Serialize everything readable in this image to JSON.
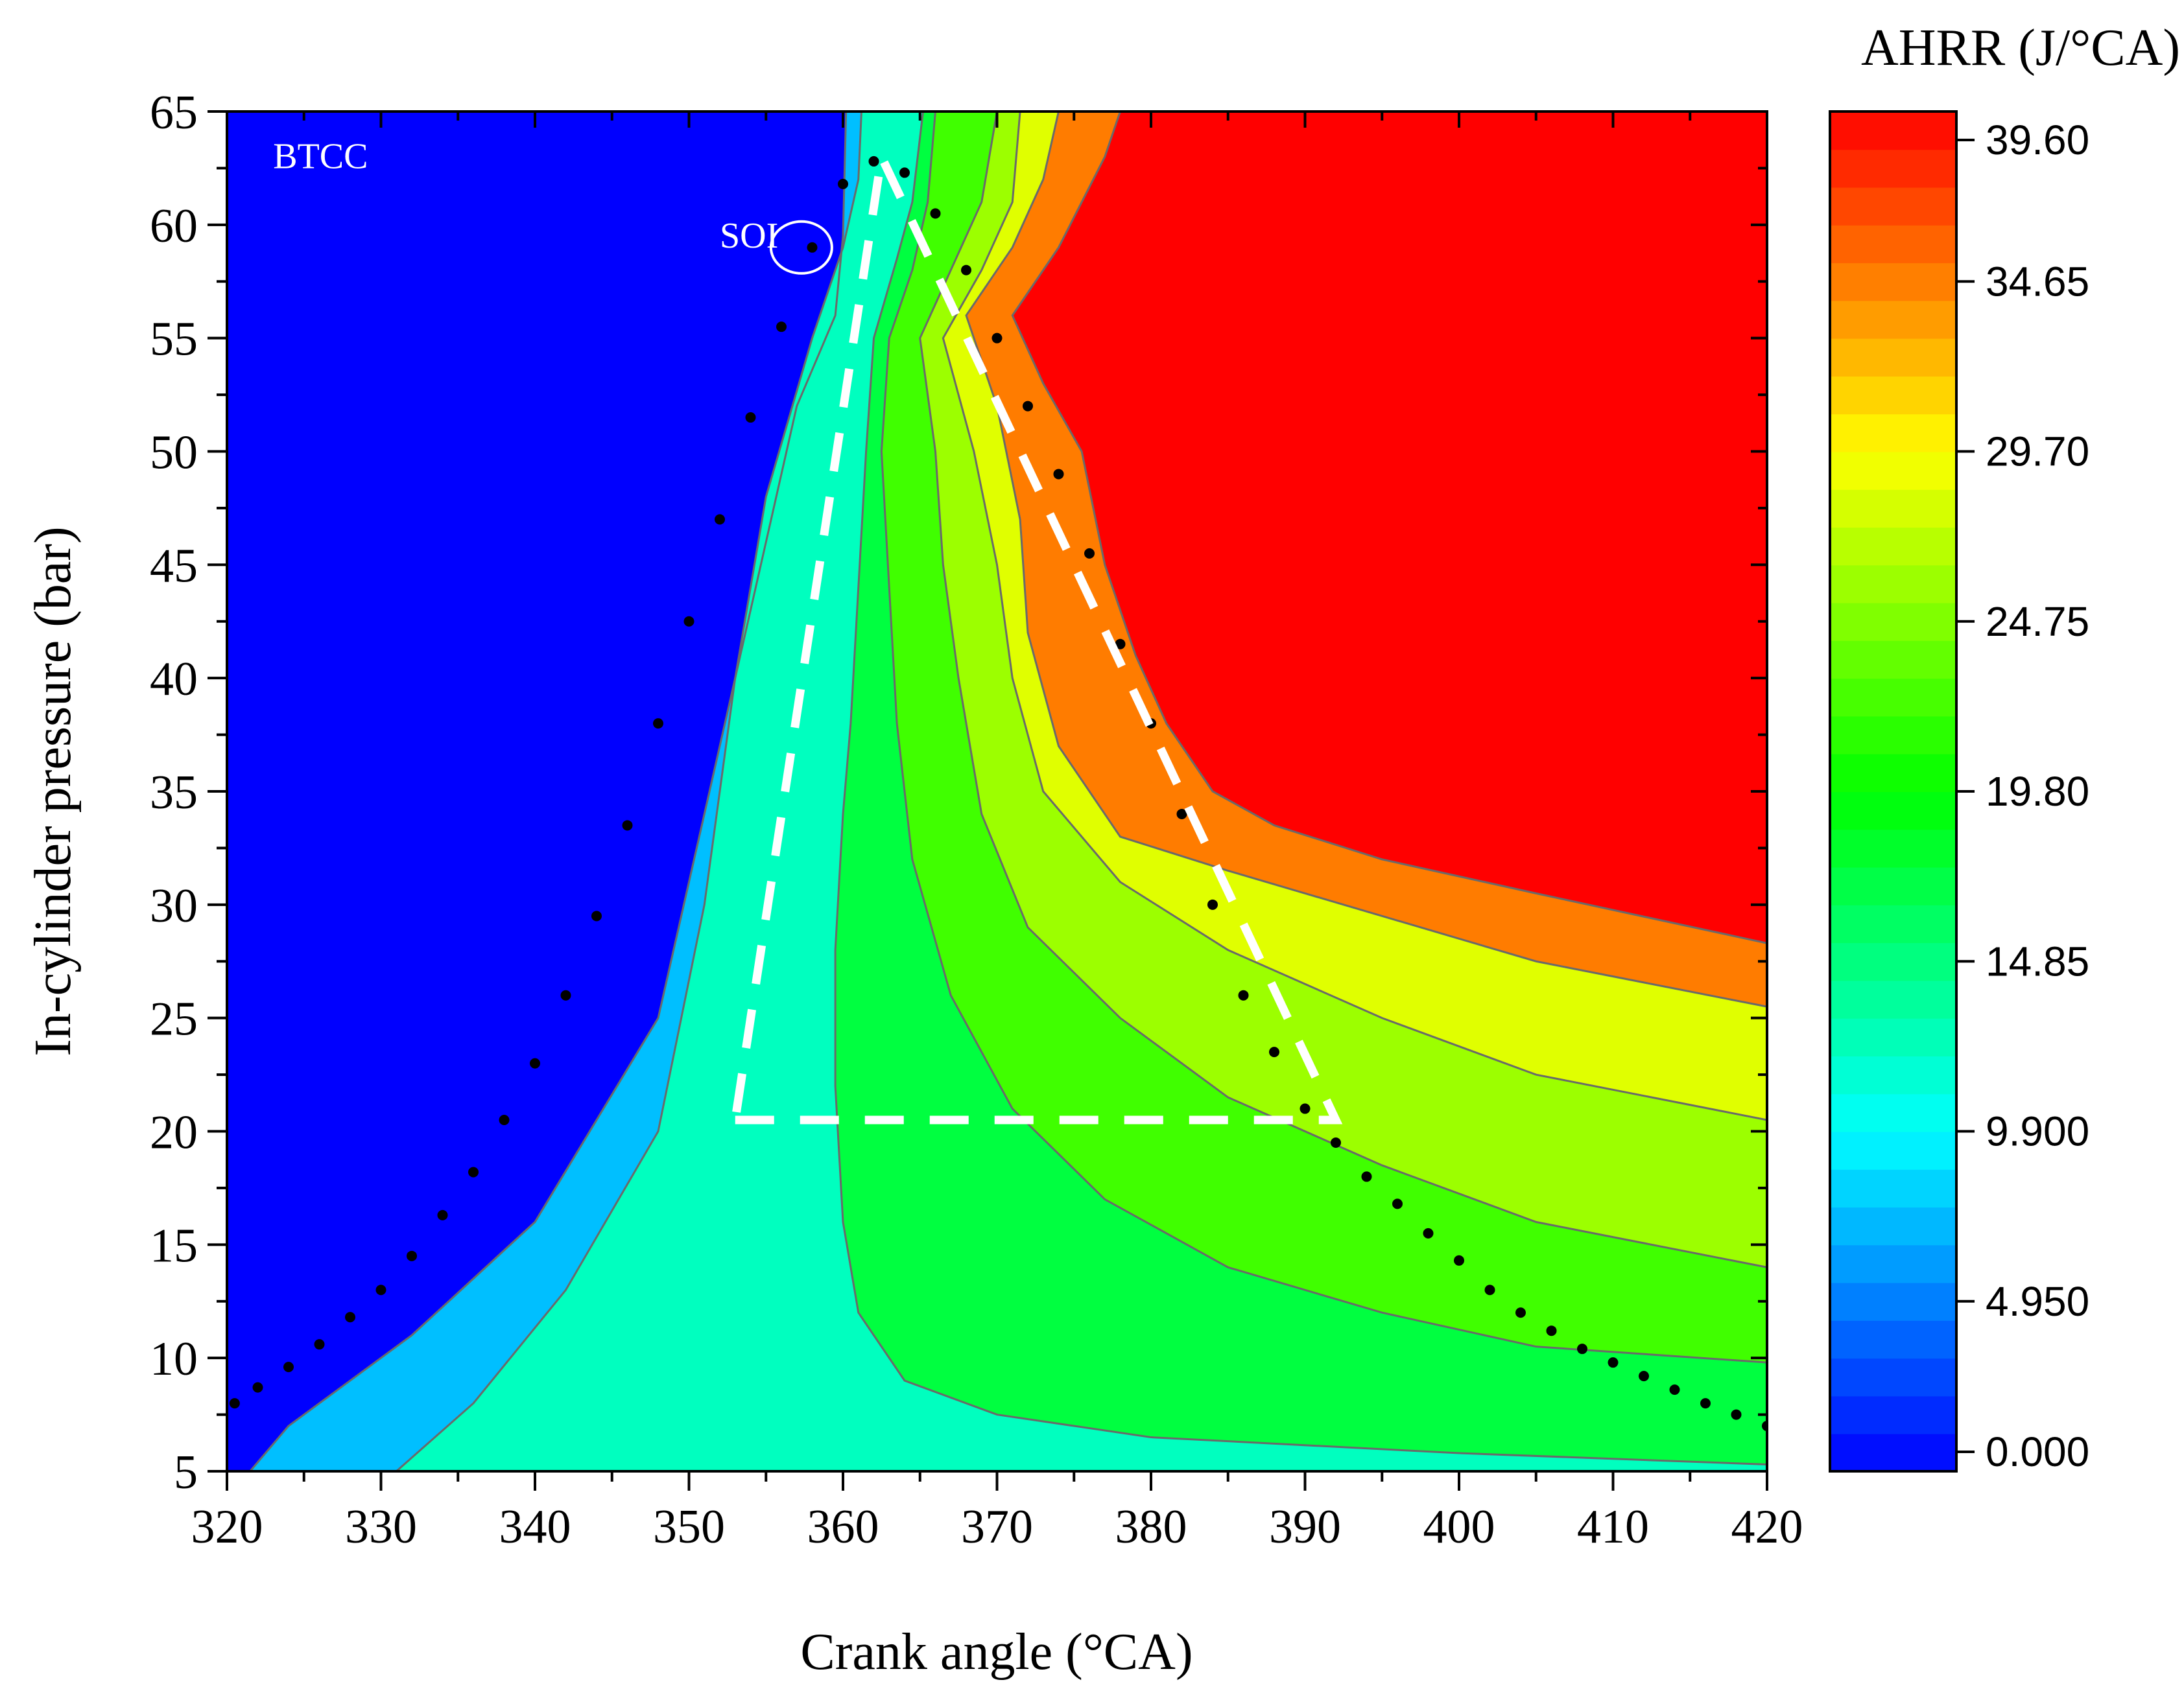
{
  "chart_data": {
    "type": "heatmap",
    "xlabel": "Crank angle (°CA)",
    "ylabel": "In-cylinder pressure (bar)",
    "xlim": [
      320,
      420
    ],
    "ylim": [
      5,
      65
    ],
    "x_ticks": [
      "320",
      "330",
      "340",
      "350",
      "360",
      "370",
      "380",
      "390",
      "400",
      "410",
      "420"
    ],
    "y_ticks": [
      "5",
      "10",
      "15",
      "20",
      "25",
      "30",
      "35",
      "40",
      "45",
      "50",
      "55",
      "60",
      "65"
    ],
    "colorbar": {
      "title": "AHRR (J/°CA)",
      "range": [
        0,
        39.6
      ],
      "tick_values": [
        0,
        4.95,
        9.9,
        14.85,
        19.8,
        24.75,
        29.7,
        34.65,
        39.6
      ],
      "tick_labels": [
        "0.000",
        "4.950",
        "9.900",
        "14.85",
        "19.80",
        "24.75",
        "29.70",
        "34.65",
        "39.60"
      ],
      "color_stops": [
        {
          "value": 0,
          "color": "#0000ff"
        },
        {
          "value": 9.9,
          "color": "#00ffff"
        },
        {
          "value": 19.8,
          "color": "#00ff00"
        },
        {
          "value": 29.7,
          "color": "#ffff00"
        },
        {
          "value": 39.6,
          "color": "#ff0000"
        }
      ]
    },
    "annotations": [
      {
        "text": "BTCC",
        "x": 323,
        "y": 62.5
      },
      {
        "text": "SOI",
        "x": 352,
        "y": 59
      }
    ],
    "soi_marker": {
      "x": 357.3,
      "y": 59
    },
    "contour_lines": [
      {
        "level": 4.95,
        "points": [
          [
            321.5,
            5
          ],
          [
            324,
            7
          ],
          [
            332,
            11
          ],
          [
            340,
            16
          ],
          [
            348,
            25
          ],
          [
            353,
            40
          ],
          [
            357,
            52
          ],
          [
            359.5,
            56
          ],
          [
            360,
            59.5
          ],
          [
            360.2,
            65
          ]
        ]
      },
      {
        "level": 9.9,
        "points": [
          [
            331,
            5
          ],
          [
            336,
            8
          ],
          [
            342,
            13
          ],
          [
            348,
            20
          ],
          [
            351,
            30
          ],
          [
            353,
            40
          ],
          [
            355,
            48
          ],
          [
            358,
            55
          ],
          [
            360,
            59
          ],
          [
            361,
            62
          ],
          [
            361.2,
            65
          ]
        ]
      },
      {
        "level": 14.85,
        "points": [
          [
            420,
            5.3
          ],
          [
            400,
            5.8
          ],
          [
            380,
            6.5
          ],
          [
            370,
            7.5
          ],
          [
            364,
            9
          ],
          [
            361,
            12
          ],
          [
            360,
            16
          ],
          [
            359.5,
            22
          ],
          [
            359.5,
            28
          ],
          [
            360,
            34
          ],
          [
            360.5,
            38
          ],
          [
            361,
            44
          ],
          [
            361.5,
            50
          ],
          [
            362,
            55
          ],
          [
            363.5,
            58.5
          ],
          [
            364.5,
            61
          ],
          [
            365.2,
            65
          ]
        ]
      },
      {
        "level": 19.8,
        "points": [
          [
            420,
            9.8
          ],
          [
            405,
            10.5
          ],
          [
            395,
            12
          ],
          [
            385,
            14
          ],
          [
            377,
            17
          ],
          [
            371,
            21
          ],
          [
            367,
            26
          ],
          [
            364.5,
            32
          ],
          [
            363.5,
            38
          ],
          [
            363,
            44
          ],
          [
            362.5,
            50
          ],
          [
            363,
            55
          ],
          [
            364.5,
            58
          ],
          [
            365.5,
            61
          ],
          [
            366,
            65
          ]
        ]
      },
      {
        "level": 24.75,
        "points": [
          [
            420,
            14
          ],
          [
            405,
            16
          ],
          [
            395,
            18.5
          ],
          [
            385,
            21.5
          ],
          [
            378,
            25
          ],
          [
            372,
            29
          ],
          [
            369,
            34
          ],
          [
            367.5,
            40
          ],
          [
            366.5,
            45
          ],
          [
            366,
            50
          ],
          [
            365,
            55
          ],
          [
            367,
            58
          ],
          [
            369,
            61
          ],
          [
            370,
            65
          ]
        ]
      },
      {
        "level": 27,
        "points": [
          [
            420,
            20.5
          ],
          [
            405,
            22.5
          ],
          [
            395,
            25
          ],
          [
            385,
            28
          ],
          [
            378,
            31
          ],
          [
            373,
            35
          ],
          [
            371,
            40
          ],
          [
            370,
            45
          ],
          [
            368.5,
            50
          ],
          [
            366.5,
            55
          ],
          [
            369,
            58
          ],
          [
            371,
            61
          ],
          [
            371.5,
            65
          ]
        ]
      },
      {
        "level": 30,
        "points": [
          [
            420,
            25.5
          ],
          [
            405,
            27.5
          ],
          [
            395,
            29.5
          ],
          [
            385,
            31.5
          ],
          [
            378,
            33
          ],
          [
            374,
            37
          ],
          [
            372,
            42
          ],
          [
            371.5,
            47
          ],
          [
            370,
            52
          ],
          [
            368,
            56
          ],
          [
            371,
            59
          ],
          [
            373,
            62
          ],
          [
            374,
            65
          ]
        ]
      },
      {
        "level": 39.6,
        "points": [
          [
            420,
            28.3
          ],
          [
            405,
            30.5
          ],
          [
            395,
            32
          ],
          [
            388,
            33.5
          ],
          [
            384,
            35
          ],
          [
            381,
            38
          ],
          [
            379,
            41
          ],
          [
            377,
            45
          ],
          [
            375.5,
            50
          ],
          [
            373,
            53
          ],
          [
            371,
            56
          ],
          [
            374,
            59
          ],
          [
            377,
            63
          ],
          [
            378,
            65
          ]
        ]
      }
    ],
    "dotted_curve": [
      [
        320.5,
        8
      ],
      [
        322,
        8.7
      ],
      [
        324,
        9.6
      ],
      [
        326,
        10.6
      ],
      [
        328,
        11.8
      ],
      [
        330,
        13
      ],
      [
        332,
        14.5
      ],
      [
        334,
        16.3
      ],
      [
        336,
        18.2
      ],
      [
        338,
        20.5
      ],
      [
        340,
        23
      ],
      [
        342,
        26
      ],
      [
        344,
        29.5
      ],
      [
        346,
        33.5
      ],
      [
        348,
        38
      ],
      [
        350,
        42.5
      ],
      [
        352,
        47
      ],
      [
        354,
        51.5
      ],
      [
        356,
        55.5
      ],
      [
        358,
        59
      ],
      [
        360,
        61.8
      ],
      [
        362,
        62.8
      ],
      [
        364,
        62.3
      ],
      [
        366,
        60.5
      ],
      [
        368,
        58
      ],
      [
        370,
        55
      ],
      [
        372,
        52
      ],
      [
        374,
        49
      ],
      [
        376,
        45.5
      ],
      [
        378,
        41.5
      ],
      [
        380,
        38
      ],
      [
        382,
        34
      ],
      [
        384,
        30
      ],
      [
        386,
        26
      ],
      [
        388,
        23.5
      ],
      [
        390,
        21
      ],
      [
        392,
        19.5
      ],
      [
        394,
        18
      ],
      [
        396,
        16.8
      ],
      [
        398,
        15.5
      ],
      [
        400,
        14.3
      ],
      [
        402,
        13
      ],
      [
        404,
        12
      ],
      [
        406,
        11.2
      ],
      [
        408,
        10.4
      ],
      [
        410,
        9.8
      ],
      [
        412,
        9.2
      ],
      [
        414,
        8.6
      ],
      [
        416,
        8
      ],
      [
        418,
        7.5
      ],
      [
        420,
        7
      ]
    ],
    "dashed_polygon": [
      [
        353,
        20.5
      ],
      [
        392,
        20.5
      ],
      [
        362.5,
        63
      ],
      [
        353,
        20.5
      ]
    ]
  }
}
